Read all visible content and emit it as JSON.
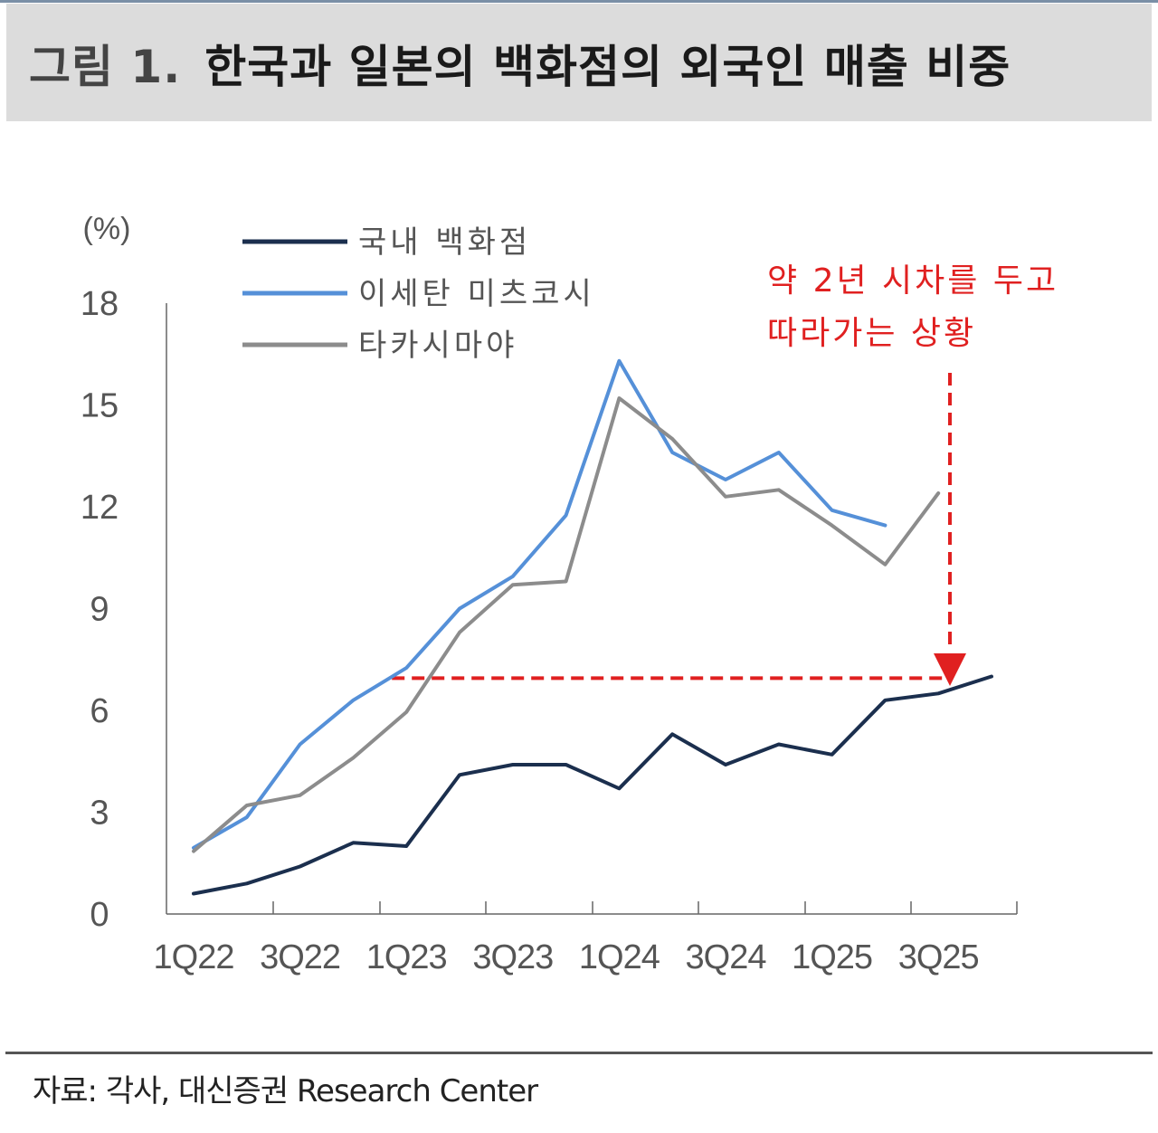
{
  "header": {
    "figure_label": "그림 1.",
    "title": "한국과 일본의 백화점의 외국인 매출 비중"
  },
  "chart_data": {
    "type": "line",
    "title": "한국과 일본의 백화점의 외국인 매출 비중",
    "ylabel": "(%)",
    "xlabel": "",
    "ylim": [
      0,
      18
    ],
    "yticks": [
      "0",
      "3",
      "6",
      "9",
      "12",
      "15",
      "18"
    ],
    "xtick_labels": [
      "1Q22",
      "3Q22",
      "1Q23",
      "3Q23",
      "1Q24",
      "3Q24",
      "1Q25",
      "3Q25"
    ],
    "categories": [
      "1Q22",
      "2Q22",
      "3Q22",
      "4Q22",
      "1Q23",
      "2Q23",
      "3Q23",
      "4Q23",
      "1Q24",
      "2Q24",
      "3Q24",
      "4Q24",
      "1Q25",
      "2Q25",
      "3Q25",
      "4Q25"
    ],
    "legend_position": "top-left",
    "series": [
      {
        "name": "국내 백화점",
        "color": "#1b2f4e",
        "values": [
          0.6,
          0.9,
          1.4,
          2.1,
          2.0,
          4.1,
          4.4,
          4.4,
          3.7,
          5.3,
          4.4,
          5.0,
          4.7,
          6.3,
          6.5,
          7.0
        ]
      },
      {
        "name": "이세탄 미츠코시",
        "color": "#5590d8",
        "values": [
          1.95,
          2.85,
          5.0,
          6.3,
          7.25,
          9.0,
          9.95,
          11.75,
          16.3,
          13.6,
          12.8,
          13.6,
          11.9,
          11.45,
          null,
          null
        ]
      },
      {
        "name": "타카시마야",
        "color": "#8c8c8c",
        "values": [
          1.85,
          3.2,
          3.5,
          4.6,
          5.95,
          8.3,
          9.7,
          9.8,
          15.2,
          14.0,
          12.3,
          12.5,
          11.45,
          10.3,
          12.4,
          null
        ]
      }
    ],
    "reference_line": {
      "value": 6.95,
      "from_category": "1Q23",
      "to_category": "3Q25",
      "style": "dashed",
      "color": "#e02020"
    },
    "annotation": {
      "lines": [
        "약 2년 시차를 두고",
        "따라가는 상황"
      ],
      "color": "#e02020"
    }
  },
  "footer": {
    "source": "자료: 각사, 대신증권 Research Center"
  }
}
